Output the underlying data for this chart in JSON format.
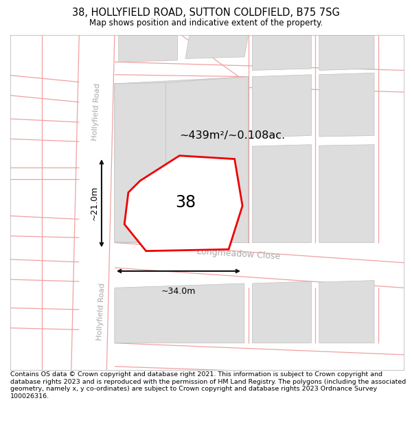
{
  "title": "38, HOLLYFIELD ROAD, SUTTON COLDFIELD, B75 7SG",
  "subtitle": "Map shows position and indicative extent of the property.",
  "footer": "Contains OS data © Crown copyright and database right 2021. This information is subject to Crown copyright and database rights 2023 and is reproduced with the permission of HM Land Registry. The polygons (including the associated geometry, namely x, y co-ordinates) are subject to Crown copyright and database rights 2023 Ordnance Survey 100026316.",
  "area_label": "~439m²/~0.108ac.",
  "number_label": "38",
  "dim_width": "~34.0m",
  "dim_height": "~21.0m",
  "road_label_left_top": "Hollyfield Road",
  "road_label_left_bot": "Hollyfield Road",
  "road_label_main": "Longmeadow Close",
  "map_bg": "#ffffff",
  "block_color": "#dddddd",
  "road_line_color": "#f0a0a0",
  "property_outline_color": "#ee0000",
  "dim_line_color": "#111111",
  "title_fontsize": 10.5,
  "subtitle_fontsize": 8.5,
  "footer_fontsize": 6.8,
  "map_border_color": "#bbbbbb",
  "road_label_color": "#aaaaaa"
}
